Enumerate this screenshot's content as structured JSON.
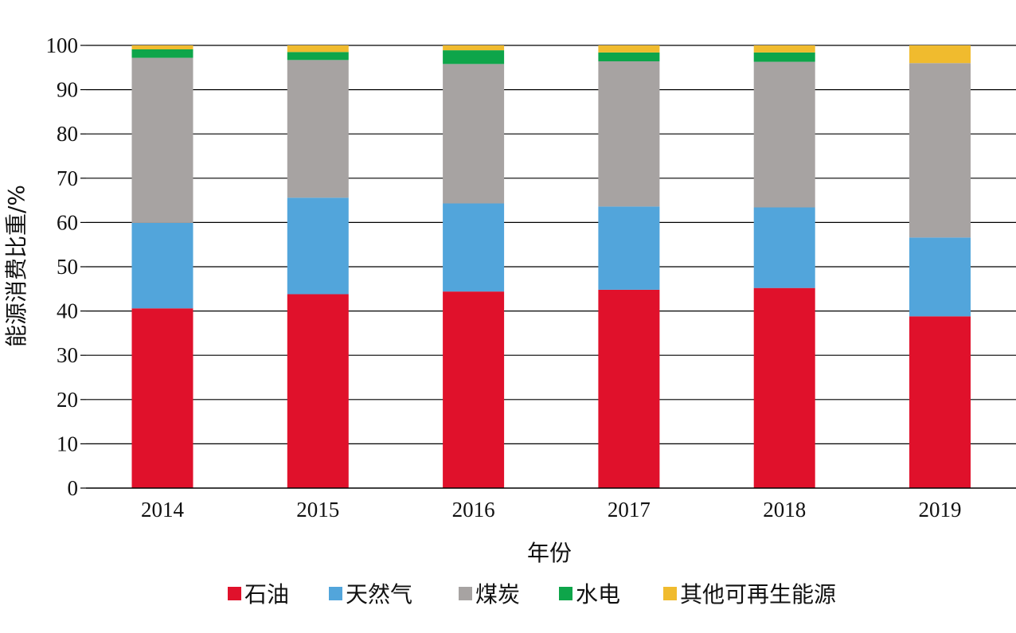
{
  "chart_data": {
    "type": "bar",
    "stacked": true,
    "xlabel": "年份",
    "ylabel": "能源消费比重/%",
    "ylim": [
      0,
      100
    ],
    "yticks": [
      "0",
      "10",
      "20",
      "30",
      "40",
      "50",
      "60",
      "70",
      "80",
      "90",
      "100"
    ],
    "grid": true,
    "legend_position": "bottom",
    "categories": [
      "2014",
      "2015",
      "2016",
      "2017",
      "2018",
      "2019"
    ],
    "series": [
      {
        "name": "石油",
        "color": "#e0112b",
        "values": [
          40.6,
          43.8,
          44.4,
          44.8,
          45.2,
          38.8
        ]
      },
      {
        "name": "天然气",
        "color": "#52a5db",
        "values": [
          19.3,
          21.8,
          19.9,
          18.8,
          18.2,
          17.8
        ]
      },
      {
        "name": "煤炭",
        "color": "#a7a3a2",
        "values": [
          37.3,
          31.1,
          31.5,
          32.8,
          32.9,
          39.4
        ]
      },
      {
        "name": "水电",
        "color": "#0ea54a",
        "values": [
          1.9,
          1.8,
          3.1,
          2.0,
          2.1,
          0.0
        ]
      },
      {
        "name": "其他可再生能源",
        "color": "#f0bb2e",
        "values": [
          0.9,
          1.5,
          1.1,
          1.6,
          1.6,
          4.0
        ]
      }
    ]
  }
}
